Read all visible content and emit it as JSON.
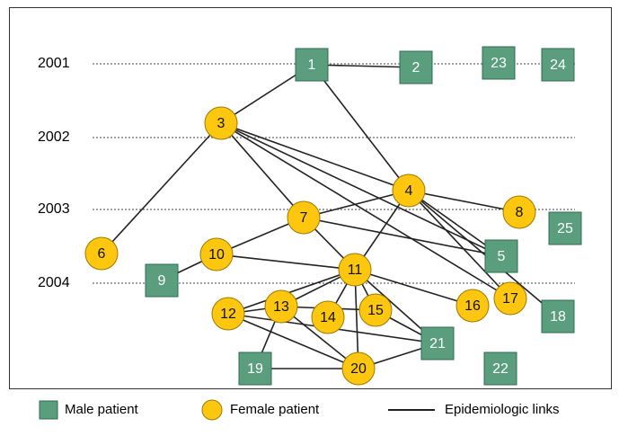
{
  "years": [
    "2001",
    "2002",
    "2003",
    "2004"
  ],
  "nodes": [
    "1",
    "2",
    "3",
    "4",
    "5",
    "6",
    "7",
    "8",
    "9",
    "10",
    "11",
    "12",
    "13",
    "14",
    "15",
    "16",
    "17",
    "18",
    "19",
    "20",
    "21",
    "22",
    "23",
    "24",
    "25"
  ],
  "legend": {
    "male": "Male patient",
    "female": "Female patient",
    "links": "Epidemiologic links"
  }
}
